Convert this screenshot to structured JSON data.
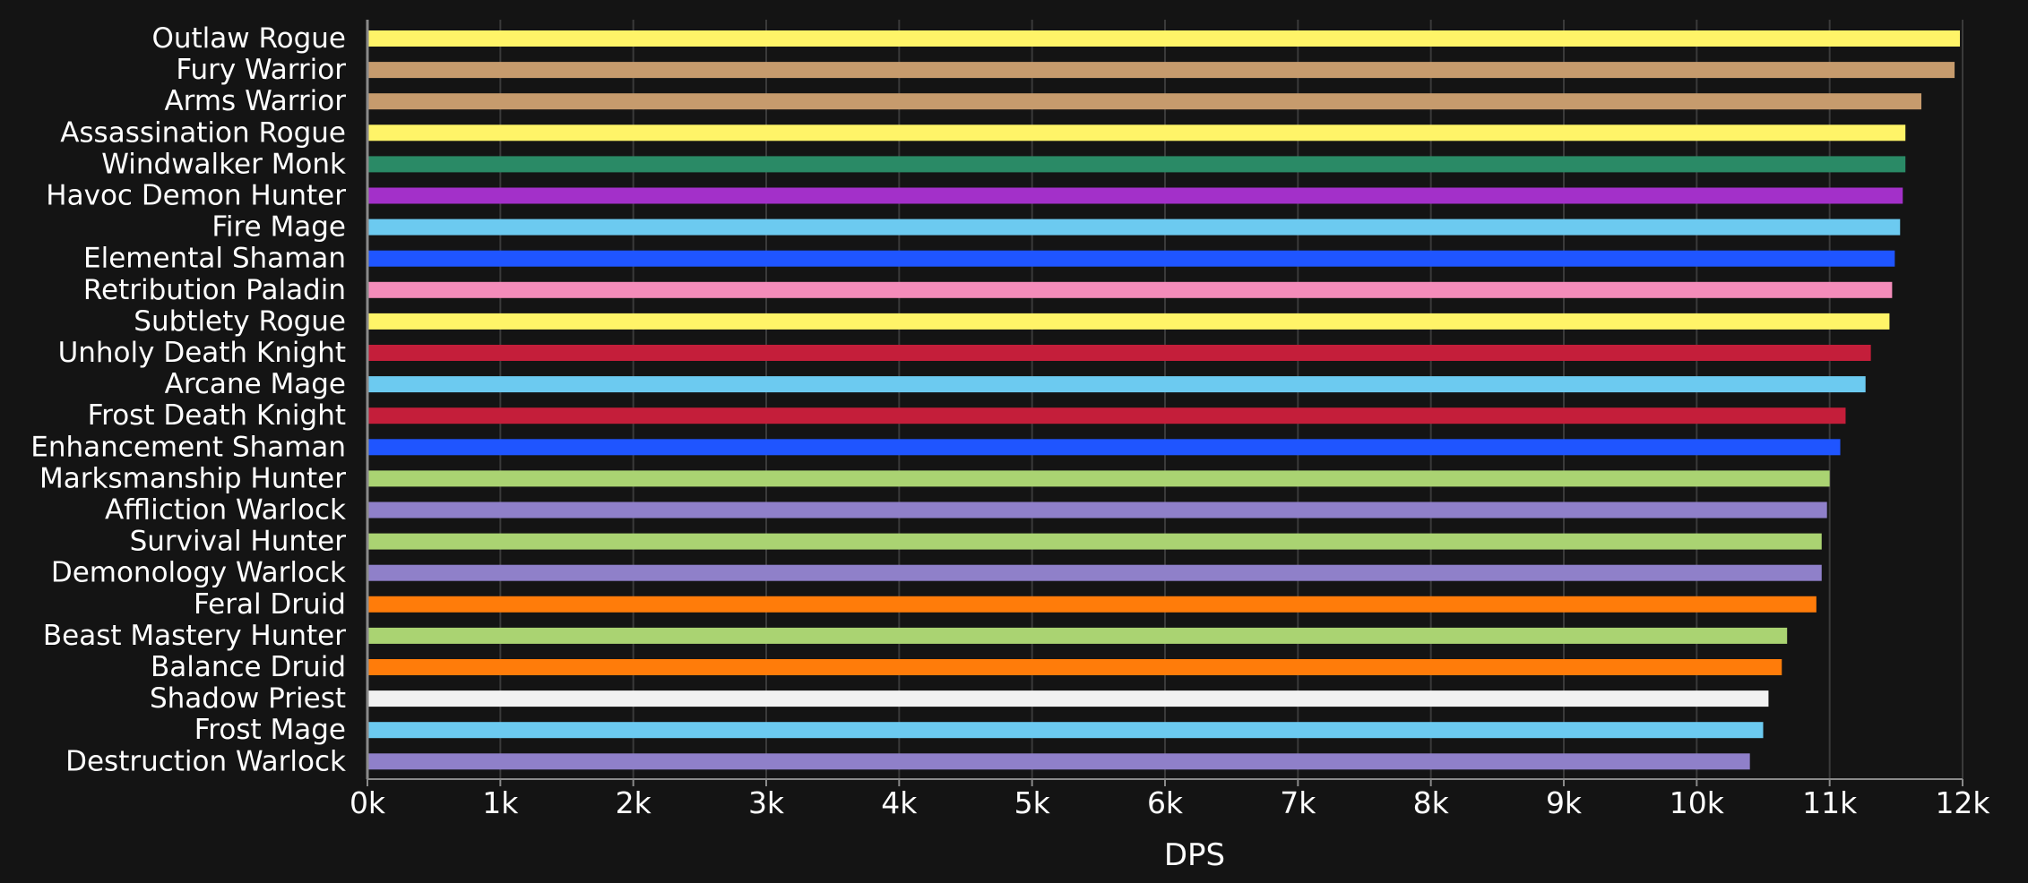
{
  "chart_data": {
    "type": "bar",
    "orientation": "horizontal",
    "title": "",
    "xlabel": "DPS",
    "ylabel": "",
    "xlim": [
      0,
      12000
    ],
    "x_ticks": [
      0,
      1000,
      2000,
      3000,
      4000,
      5000,
      6000,
      7000,
      8000,
      9000,
      10000,
      11000,
      12000
    ],
    "x_tick_labels": [
      "0k",
      "1k",
      "2k",
      "3k",
      "4k",
      "5k",
      "6k",
      "7k",
      "8k",
      "9k",
      "10k",
      "11k",
      "12k"
    ],
    "grid": "vertical",
    "legend": "none",
    "bars": [
      {
        "label": "Outlaw Rogue",
        "value": 11980,
        "color": "#FFF468"
      },
      {
        "label": "Fury Warrior",
        "value": 11940,
        "color": "#C69B6D"
      },
      {
        "label": "Arms Warrior",
        "value": 11690,
        "color": "#C69B6D"
      },
      {
        "label": "Assassination Rogue",
        "value": 11570,
        "color": "#FFF468"
      },
      {
        "label": "Windwalker Monk",
        "value": 11570,
        "color": "#2A8A66"
      },
      {
        "label": "Havoc Demon Hunter",
        "value": 11550,
        "color": "#A330C9"
      },
      {
        "label": "Fire Mage",
        "value": 11530,
        "color": "#6CCAF0"
      },
      {
        "label": "Elemental Shaman",
        "value": 11490,
        "color": "#1F55FF"
      },
      {
        "label": "Retribution Paladin",
        "value": 11470,
        "color": "#F48CBA"
      },
      {
        "label": "Subtlety Rogue",
        "value": 11450,
        "color": "#FFF468"
      },
      {
        "label": "Unholy Death Knight",
        "value": 11310,
        "color": "#C41E3A"
      },
      {
        "label": "Arcane Mage",
        "value": 11270,
        "color": "#6CCAF0"
      },
      {
        "label": "Frost Death Knight",
        "value": 11120,
        "color": "#C41E3A"
      },
      {
        "label": "Enhancement Shaman",
        "value": 11080,
        "color": "#1F55FF"
      },
      {
        "label": "Marksmanship Hunter",
        "value": 11000,
        "color": "#AAD372"
      },
      {
        "label": "Affliction Warlock",
        "value": 10980,
        "color": "#8F80C9"
      },
      {
        "label": "Survival Hunter",
        "value": 10940,
        "color": "#AAD372"
      },
      {
        "label": "Demonology Warlock",
        "value": 10940,
        "color": "#8F80C9"
      },
      {
        "label": "Feral Druid",
        "value": 10900,
        "color": "#FF7C0A"
      },
      {
        "label": "Beast Mastery Hunter",
        "value": 10680,
        "color": "#AAD372"
      },
      {
        "label": "Balance Druid",
        "value": 10640,
        "color": "#FF7C0A"
      },
      {
        "label": "Shadow Priest",
        "value": 10540,
        "color": "#F2F2F2"
      },
      {
        "label": "Frost Mage",
        "value": 10500,
        "color": "#6CCAF0"
      },
      {
        "label": "Destruction Warlock",
        "value": 10400,
        "color": "#8F80C9"
      }
    ]
  },
  "colors": {
    "background": "#141414",
    "grid": "#3a3a3a",
    "axis": "#8a8a8a",
    "text": "#ffffff"
  }
}
